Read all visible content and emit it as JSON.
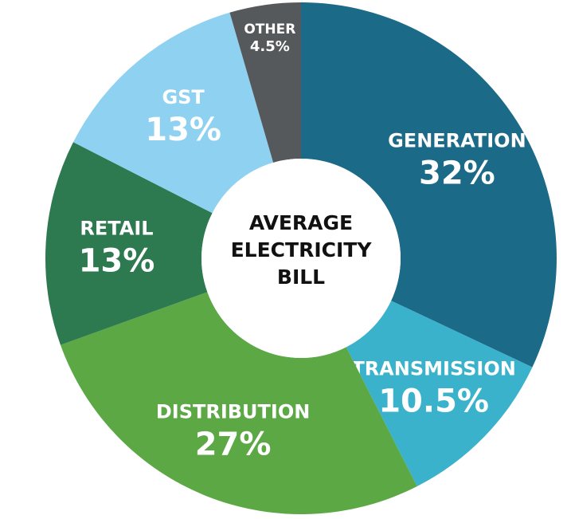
{
  "chart_data": {
    "type": "donut",
    "title": "AVERAGE ELECTRICITY BILL",
    "categories": [
      "GENERATION",
      "TRANSMISSION",
      "DISTRIBUTION",
      "RETAIL",
      "GST",
      "OTHER"
    ],
    "values": [
      32,
      10.5,
      27,
      13,
      13,
      4.5
    ],
    "value_labels": [
      "32%",
      "10.5%",
      "27%",
      "13%",
      "13%",
      "4.5%"
    ],
    "colors": [
      "#1b6a88",
      "#3ab2cb",
      "#5ba845",
      "#2e7a50",
      "#8fd1f0",
      "#55595b"
    ]
  }
}
